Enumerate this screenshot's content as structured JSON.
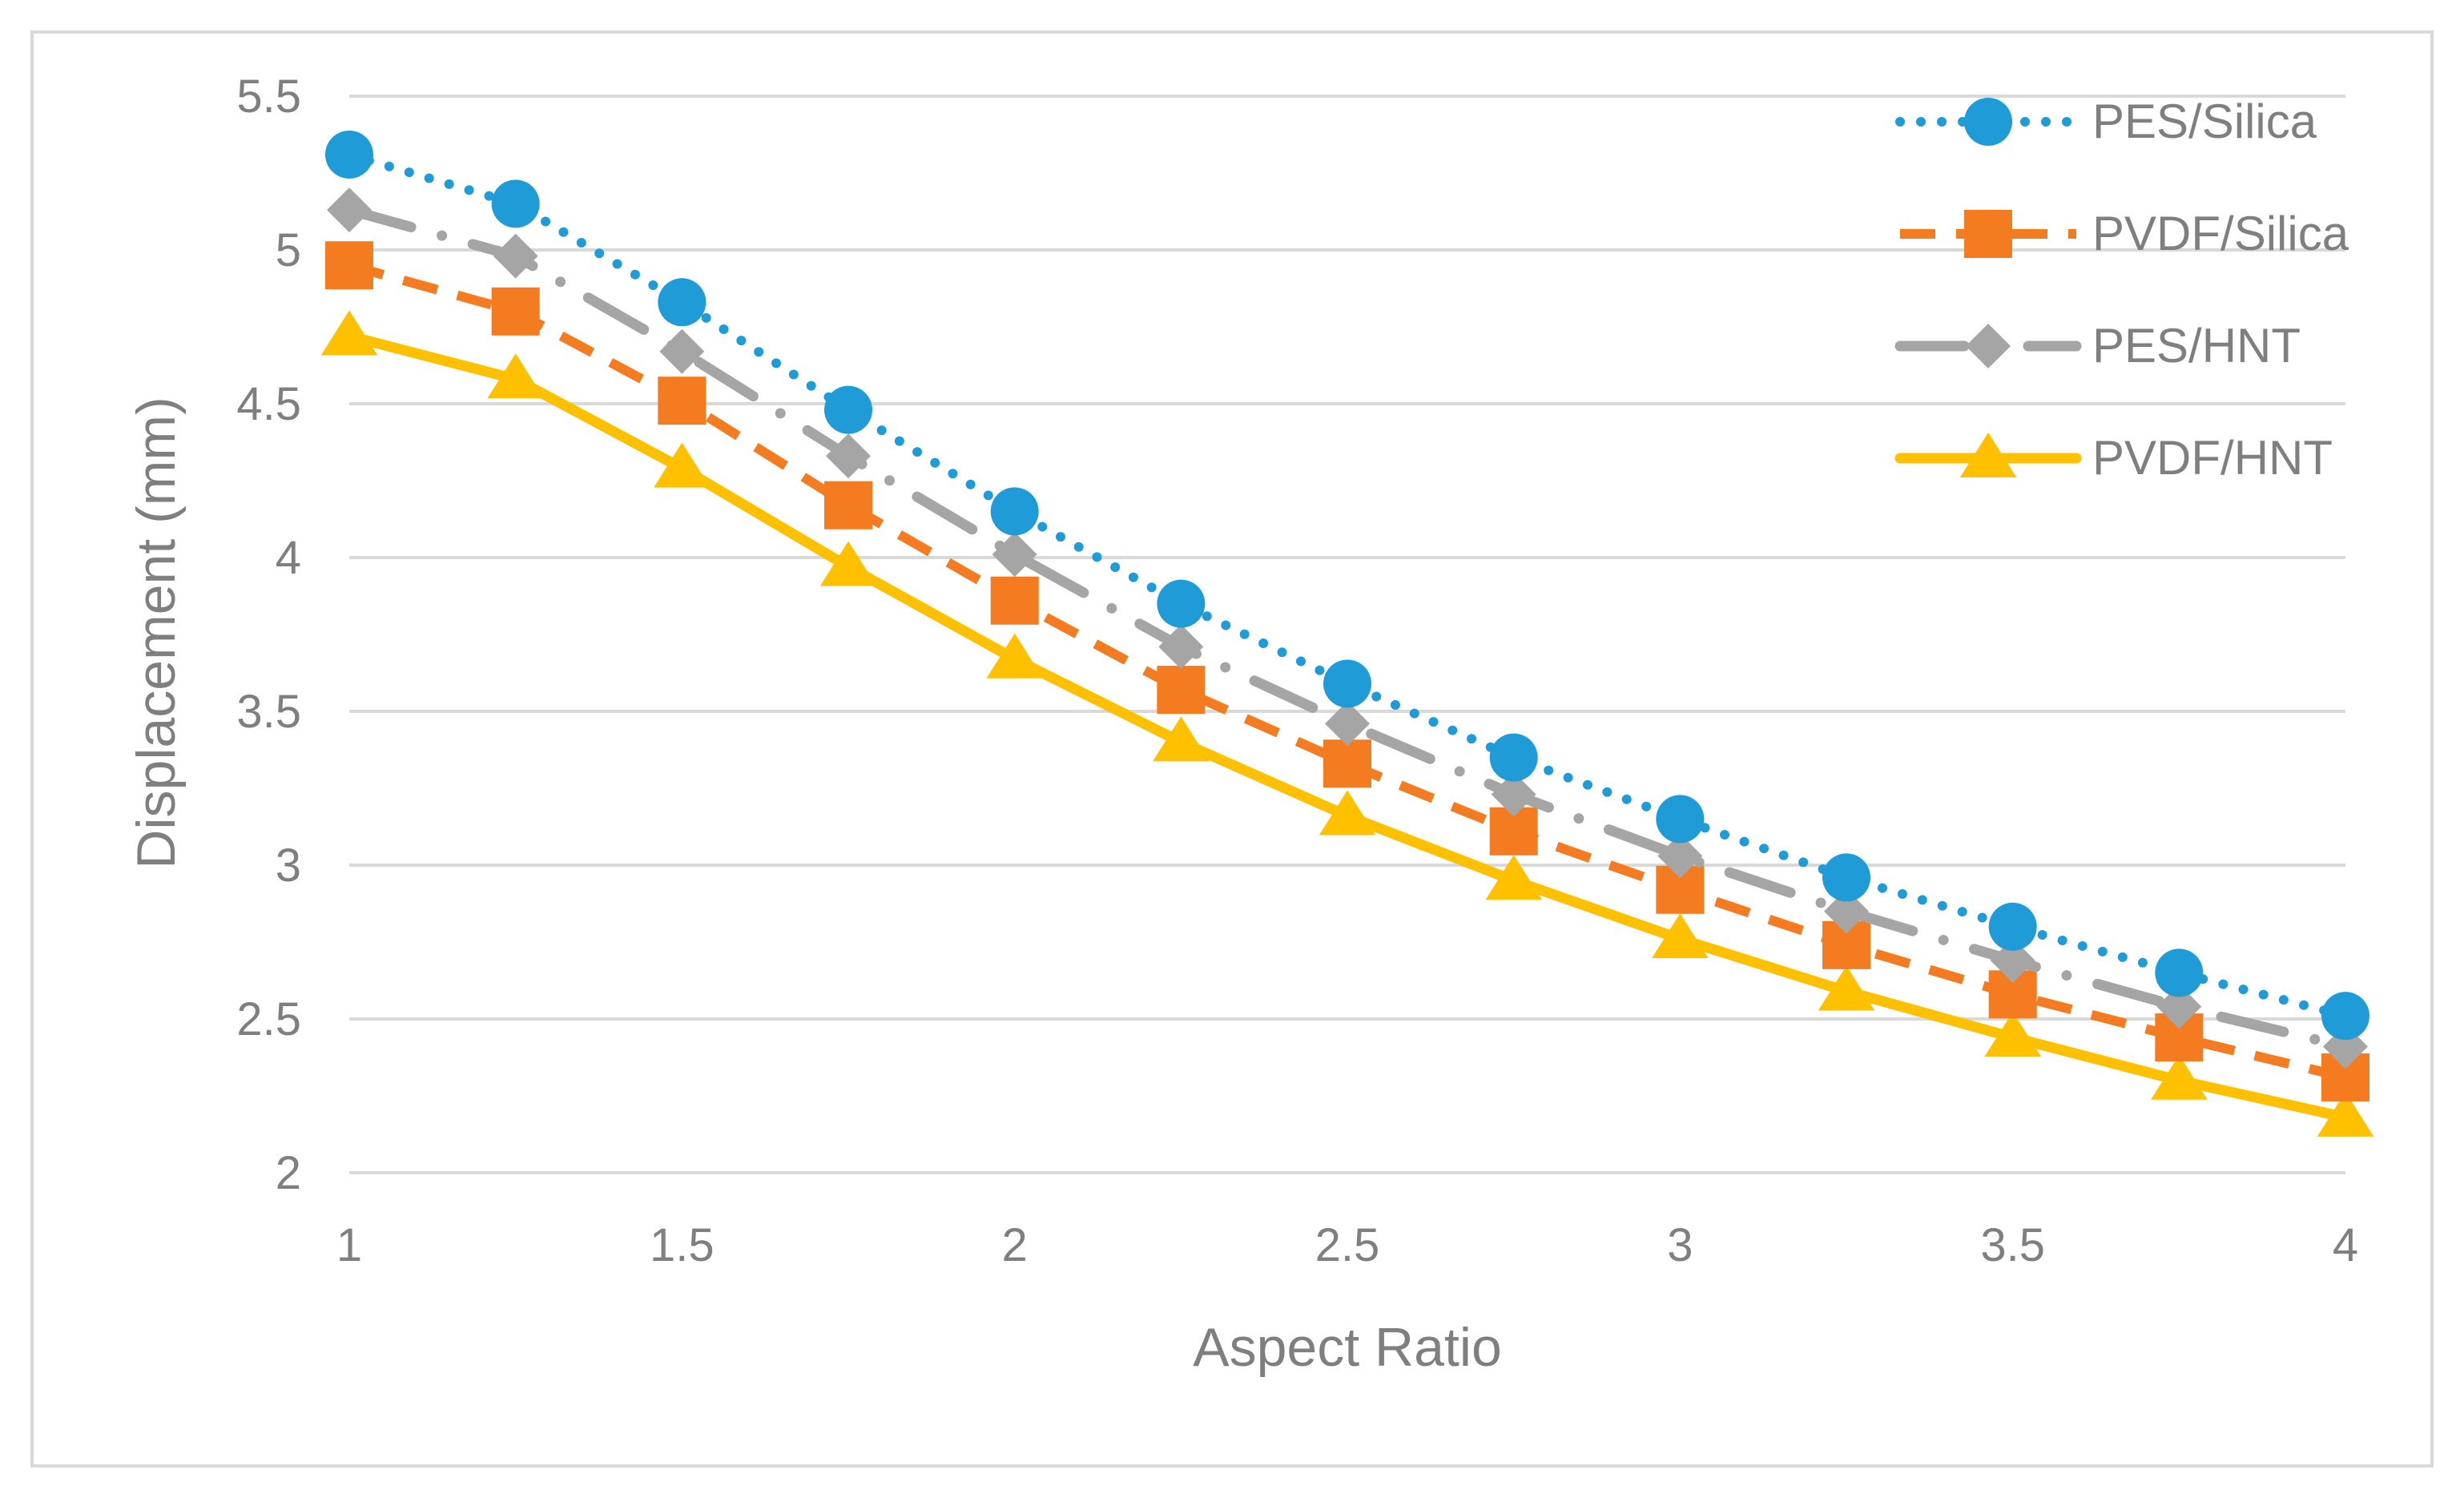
{
  "chart_data": {
    "type": "line",
    "title": "",
    "xlabel": "Aspect Ratio",
    "ylabel": "Displacement (mm)",
    "xlim": [
      1,
      4
    ],
    "ylim": [
      2,
      5.5
    ],
    "x_ticks": [
      "1",
      "1.5",
      "2",
      "2.5",
      "3",
      "3.5",
      "4"
    ],
    "y_ticks": [
      "2",
      "2.5",
      "3",
      "3.5",
      "4",
      "4.5",
      "5",
      "5.5"
    ],
    "grid": "horizontal",
    "legend_position": "top-right",
    "x": [
      1,
      1.25,
      1.5,
      1.75,
      2,
      2.25,
      2.5,
      2.75,
      3,
      3.25,
      3.5,
      3.75,
      4
    ],
    "series": [
      {
        "name": "PES/Silica",
        "color": "#1f9bd7",
        "line": "dotted",
        "marker": "circle",
        "values": [
          5.31,
          5.15,
          4.83,
          4.48,
          4.15,
          3.85,
          3.59,
          3.35,
          3.15,
          2.96,
          2.8,
          2.65,
          2.51
        ]
      },
      {
        "name": "PVDF/Silica",
        "color": "#f47b20",
        "line": "dashed",
        "marker": "square",
        "values": [
          4.95,
          4.8,
          4.51,
          4.17,
          3.86,
          3.57,
          3.33,
          3.11,
          2.92,
          2.74,
          2.58,
          2.44,
          2.31
        ]
      },
      {
        "name": "PES/HNT",
        "color": "#a5a5a5",
        "line": "dash-dot",
        "marker": "diamond",
        "values": [
          5.13,
          4.98,
          4.67,
          4.33,
          4.01,
          3.71,
          3.46,
          3.23,
          3.03,
          2.85,
          2.69,
          2.54,
          2.41
        ]
      },
      {
        "name": "PVDF/HNT",
        "color": "#ffc000",
        "line": "solid",
        "marker": "triangle",
        "values": [
          4.72,
          4.58,
          4.29,
          3.97,
          3.67,
          3.4,
          3.16,
          2.95,
          2.76,
          2.59,
          2.44,
          2.3,
          2.18
        ]
      }
    ]
  }
}
